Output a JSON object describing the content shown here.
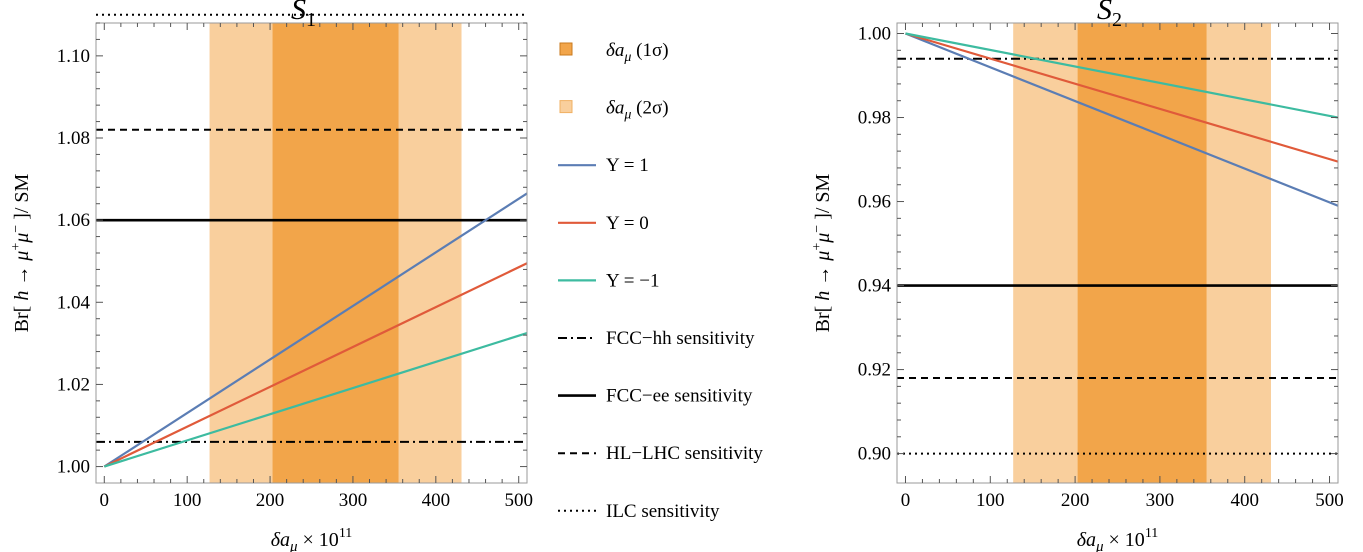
{
  "colors": {
    "band_1sigma": "#f2a54a",
    "band_2sigma": "#f9cf9d",
    "y_plus1": "#5b7db4",
    "y_zero": "#e05a3a",
    "y_minus1": "#3dbba0",
    "sensitivity": "#000000",
    "frame": "#9a9a9a"
  },
  "legend": [
    {
      "key": "band1",
      "label": "δa",
      "sub": "μ",
      "suffix": " (1σ)",
      "kind": "box-1sigma"
    },
    {
      "key": "band2",
      "label": "δa",
      "sub": "μ",
      "suffix": " (2σ)",
      "kind": "box-2sigma"
    },
    {
      "key": "yp1",
      "label": "Y = 1",
      "kind": "line-y_plus1"
    },
    {
      "key": "y0",
      "label": "Y = 0",
      "kind": "line-y_zero"
    },
    {
      "key": "ym1",
      "label": "Y = −1",
      "kind": "line-y_minus1"
    },
    {
      "key": "fcchh",
      "label": "FCC−hh sensitivity",
      "kind": "dashdot"
    },
    {
      "key": "fccee",
      "label": "FCC−ee sensitivity",
      "kind": "solid"
    },
    {
      "key": "hllhc",
      "label": "HL−LHC sensitivity",
      "kind": "dashed"
    },
    {
      "key": "ilc",
      "label": "ILC sensitivity",
      "kind": "dotted"
    }
  ],
  "chart_data": [
    {
      "type": "line",
      "title": "S",
      "title_sub": "1",
      "xlabel": "δa_μ × 10^11",
      "ylabel": "Br[ h → μ⁺μ⁻ ]/ SM",
      "xlim": [
        -10,
        510
      ],
      "ylim": [
        0.996,
        1.108
      ],
      "xticks": [
        0,
        100,
        200,
        300,
        400,
        500
      ],
      "yticks": [
        1.0,
        1.02,
        1.04,
        1.06,
        1.08,
        1.1
      ],
      "ytick_labels": [
        "1.00",
        "1.02",
        "1.04",
        "1.06",
        "1.08",
        "1.10"
      ],
      "bands": [
        {
          "name": "δa_μ (2σ)",
          "x": [
            127,
            431
          ],
          "color_key": "band_2sigma"
        },
        {
          "name": "δa_μ (1σ)",
          "x": [
            203,
            355
          ],
          "color_key": "band_1sigma"
        }
      ],
      "series": [
        {
          "name": "Y = 1",
          "x": [
            0,
            510
          ],
          "y": [
            1.0,
            1.0665
          ],
          "color_key": "y_plus1"
        },
        {
          "name": "Y = 0",
          "x": [
            0,
            510
          ],
          "y": [
            1.0,
            1.0495
          ],
          "color_key": "y_zero"
        },
        {
          "name": "Y = −1",
          "x": [
            0,
            510
          ],
          "y": [
            1.0,
            1.0325
          ],
          "color_key": "y_minus1"
        }
      ],
      "hlines": [
        {
          "name": "ILC sensitivity",
          "y": 1.11,
          "style": "dotted"
        },
        {
          "name": "HL−LHC sensitivity",
          "y": 1.082,
          "style": "dashed"
        },
        {
          "name": "FCC−ee sensitivity",
          "y": 1.06,
          "style": "solid"
        },
        {
          "name": "FCC−hh sensitivity",
          "y": 1.006,
          "style": "dashdot"
        }
      ]
    },
    {
      "type": "line",
      "title": "S",
      "title_sub": "2",
      "xlabel": "δa_μ × 10^11",
      "ylabel": "Br[ h → μ⁺μ⁻ ]/ SM",
      "xlim": [
        -10,
        510
      ],
      "ylim": [
        0.893,
        1.0025
      ],
      "xticks": [
        0,
        100,
        200,
        300,
        400,
        500
      ],
      "yticks": [
        0.9,
        0.92,
        0.94,
        0.96,
        0.98,
        1.0
      ],
      "ytick_labels": [
        "0.90",
        "0.92",
        "0.94",
        "0.96",
        "0.98",
        "1.00"
      ],
      "bands": [
        {
          "name": "δa_μ (2σ)",
          "x": [
            127,
            431
          ],
          "color_key": "band_2sigma"
        },
        {
          "name": "δa_μ (1σ)",
          "x": [
            203,
            355
          ],
          "color_key": "band_1sigma"
        }
      ],
      "series": [
        {
          "name": "Y = 1",
          "x": [
            0,
            510
          ],
          "y": [
            1.0,
            0.959
          ],
          "color_key": "y_plus1"
        },
        {
          "name": "Y = 0",
          "x": [
            0,
            510
          ],
          "y": [
            1.0,
            0.9695
          ],
          "color_key": "y_zero"
        },
        {
          "name": "Y = −1",
          "x": [
            0,
            510
          ],
          "y": [
            1.0,
            0.98
          ],
          "color_key": "y_minus1"
        }
      ],
      "hlines": [
        {
          "name": "FCC−hh sensitivity",
          "y": 0.994,
          "style": "dashdot"
        },
        {
          "name": "FCC−ee sensitivity",
          "y": 0.94,
          "style": "solid"
        },
        {
          "name": "HL−LHC sensitivity",
          "y": 0.918,
          "style": "dashed"
        },
        {
          "name": "ILC sensitivity",
          "y": 0.9,
          "style": "dotted"
        }
      ]
    }
  ]
}
